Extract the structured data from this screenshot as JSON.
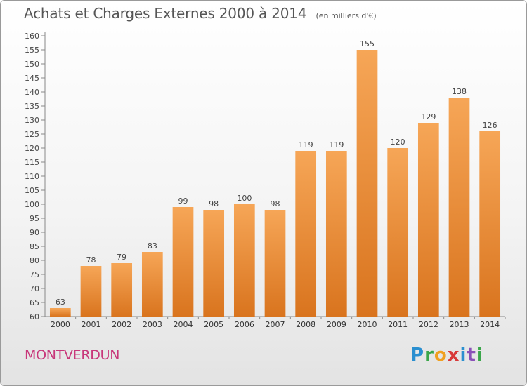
{
  "title": "Achats et Charges Externes 2000 à 2014",
  "subtitle": "(en milliers d'€)",
  "commune": "MONTVERDUN",
  "logo": {
    "text": "Proxiti",
    "letters": [
      {
        "ch": "P",
        "color": "#2a8fd0"
      },
      {
        "ch": "r",
        "color": "#3aa64a"
      },
      {
        "ch": "o",
        "color": "#f0a020"
      },
      {
        "ch": "x",
        "color": "#d83a3a"
      },
      {
        "ch": "i",
        "color": "#2a8fd0"
      },
      {
        "ch": "t",
        "color": "#8a50b8"
      },
      {
        "ch": "i",
        "color": "#3aa64a"
      }
    ]
  },
  "colors": {
    "bar_top": "#f6a657",
    "bar_bottom": "#d9741e",
    "axis": "#888888",
    "grid": "#d8d8d8"
  },
  "chart_data": {
    "type": "bar",
    "title": "Achats et Charges Externes 2000 à 2014",
    "subtitle": "(en milliers d'€)",
    "xlabel": "",
    "ylabel": "",
    "categories": [
      "2000",
      "2001",
      "2002",
      "2003",
      "2004",
      "2005",
      "2006",
      "2007",
      "2008",
      "2009",
      "2010",
      "2011",
      "2012",
      "2013",
      "2014"
    ],
    "values": [
      63,
      78,
      79,
      83,
      99,
      98,
      100,
      98,
      119,
      119,
      155,
      120,
      129,
      138,
      126
    ],
    "ylim": [
      60,
      160
    ],
    "yticks": [
      60,
      65,
      70,
      75,
      80,
      85,
      90,
      95,
      100,
      105,
      110,
      115,
      120,
      125,
      130,
      135,
      140,
      145,
      150,
      155,
      160
    ],
    "grid": false,
    "legend": "none"
  }
}
